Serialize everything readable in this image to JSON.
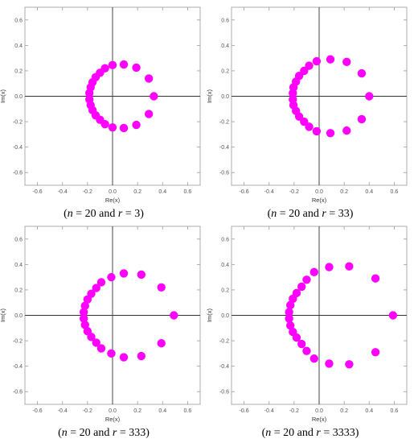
{
  "chart_data": [
    {
      "type": "scatter",
      "caption": {
        "n_var": "n",
        "n_val": "= 20 and",
        "r_var": "r",
        "r_val": "= 3"
      },
      "xlabel": "Re(x)",
      "ylabel": "Im(x)",
      "xlim": [
        -0.7,
        0.7
      ],
      "ylim": [
        -0.7,
        0.7
      ],
      "xticks": [
        "-0.6",
        "-0.4",
        "-0.2",
        "0.0",
        "0.2",
        "0.4",
        "0.6"
      ],
      "yticks": [
        "0.6",
        "0.4",
        "0.2",
        "0.0",
        "-0.2",
        "-0.4",
        "-0.6"
      ],
      "color": "#ff00ff",
      "points": [
        [
          0.33,
          0.0
        ],
        [
          0.29,
          0.14
        ],
        [
          0.29,
          -0.14
        ],
        [
          0.19,
          0.225
        ],
        [
          0.19,
          -0.225
        ],
        [
          0.09,
          0.25
        ],
        [
          0.09,
          -0.25
        ],
        [
          0.0,
          0.245
        ],
        [
          0.0,
          -0.245
        ],
        [
          -0.06,
          0.22
        ],
        [
          -0.06,
          -0.22
        ],
        [
          -0.1,
          0.185
        ],
        [
          -0.1,
          -0.185
        ],
        [
          -0.135,
          0.15
        ],
        [
          -0.135,
          -0.15
        ],
        [
          -0.16,
          0.11
        ],
        [
          -0.16,
          -0.11
        ],
        [
          -0.175,
          0.07
        ],
        [
          -0.175,
          -0.07
        ],
        [
          -0.185,
          0.025
        ],
        [
          -0.185,
          -0.025
        ]
      ]
    },
    {
      "type": "scatter",
      "caption": {
        "n_var": "n",
        "n_val": "= 20 and",
        "r_var": "r",
        "r_val": "= 33"
      },
      "xlabel": "Re(x)",
      "ylabel": "Im(x)",
      "xlim": [
        -0.7,
        0.7
      ],
      "ylim": [
        -0.7,
        0.7
      ],
      "xticks": [
        "-0.6",
        "-0.4",
        "-0.2",
        "0.0",
        "0.2",
        "0.4",
        "0.6"
      ],
      "yticks": [
        "0.6",
        "0.4",
        "0.2",
        "0.0",
        "-0.2",
        "-0.4",
        "-0.6"
      ],
      "color": "#ff00ff",
      "points": [
        [
          0.4,
          0.0
        ],
        [
          0.34,
          0.18
        ],
        [
          0.34,
          -0.18
        ],
        [
          0.22,
          0.27
        ],
        [
          0.22,
          -0.27
        ],
        [
          0.09,
          0.29
        ],
        [
          0.09,
          -0.29
        ],
        [
          -0.02,
          0.275
        ],
        [
          -0.02,
          -0.275
        ],
        [
          -0.08,
          0.24
        ],
        [
          -0.08,
          -0.24
        ],
        [
          -0.12,
          0.2
        ],
        [
          -0.12,
          -0.2
        ],
        [
          -0.16,
          0.16
        ],
        [
          -0.16,
          -0.16
        ],
        [
          -0.185,
          0.115
        ],
        [
          -0.185,
          -0.115
        ],
        [
          -0.205,
          0.07
        ],
        [
          -0.205,
          -0.07
        ],
        [
          -0.21,
          0.025
        ],
        [
          -0.21,
          -0.025
        ]
      ]
    },
    {
      "type": "scatter",
      "caption": {
        "n_var": "n",
        "n_val": "= 20 and",
        "r_var": "r",
        "r_val": "= 333"
      },
      "xlabel": "Re(x)",
      "ylabel": "Im(x)",
      "xlim": [
        -0.7,
        0.7
      ],
      "ylim": [
        -0.7,
        0.7
      ],
      "xticks": [
        "-0.6",
        "-0.4",
        "-0.2",
        "0.0",
        "0.2",
        "0.4",
        "0.6"
      ],
      "yticks": [
        "0.6",
        "0.4",
        "0.2",
        "0.0",
        "-0.2",
        "-0.4",
        "-0.6"
      ],
      "color": "#ff00ff",
      "points": [
        [
          0.49,
          0.0
        ],
        [
          0.39,
          0.22
        ],
        [
          0.39,
          -0.22
        ],
        [
          0.23,
          0.32
        ],
        [
          0.23,
          -0.32
        ],
        [
          0.09,
          0.33
        ],
        [
          0.09,
          -0.33
        ],
        [
          -0.01,
          0.3
        ],
        [
          -0.01,
          -0.3
        ],
        [
          -0.09,
          0.26
        ],
        [
          -0.09,
          -0.26
        ],
        [
          -0.13,
          0.215
        ],
        [
          -0.13,
          -0.215
        ],
        [
          -0.17,
          0.17
        ],
        [
          -0.17,
          -0.17
        ],
        [
          -0.2,
          0.125
        ],
        [
          -0.2,
          -0.125
        ],
        [
          -0.22,
          0.075
        ],
        [
          -0.22,
          -0.075
        ],
        [
          -0.23,
          0.025
        ],
        [
          -0.23,
          -0.025
        ]
      ]
    },
    {
      "type": "scatter",
      "caption": {
        "n_var": "n",
        "n_val": "= 20 and",
        "r_var": "r",
        "r_val": "= 3333"
      },
      "xlabel": "Re(x)",
      "ylabel": "Im(x)",
      "xlim": [
        -0.7,
        0.7
      ],
      "ylim": [
        -0.7,
        0.7
      ],
      "xticks": [
        "-0.6",
        "-0.4",
        "-0.2",
        "0.0",
        "0.2",
        "0.4",
        "0.6"
      ],
      "yticks": [
        "0.6",
        "0.4",
        "0.2",
        "0.0",
        "-0.2",
        "-0.4",
        "-0.6"
      ],
      "color": "#ff00ff",
      "points": [
        [
          0.59,
          0.0
        ],
        [
          0.45,
          0.29
        ],
        [
          0.45,
          -0.29
        ],
        [
          0.24,
          0.385
        ],
        [
          0.24,
          -0.385
        ],
        [
          0.08,
          0.38
        ],
        [
          0.08,
          -0.38
        ],
        [
          -0.04,
          0.34
        ],
        [
          -0.04,
          -0.34
        ],
        [
          -0.1,
          0.28
        ],
        [
          -0.1,
          -0.28
        ],
        [
          -0.14,
          0.225
        ],
        [
          -0.14,
          -0.225
        ],
        [
          -0.18,
          0.175
        ],
        [
          -0.18,
          -0.175
        ],
        [
          -0.21,
          0.13
        ],
        [
          -0.21,
          -0.13
        ],
        [
          -0.23,
          0.08
        ],
        [
          -0.23,
          -0.08
        ],
        [
          -0.24,
          0.025
        ],
        [
          -0.24,
          -0.025
        ]
      ]
    }
  ]
}
